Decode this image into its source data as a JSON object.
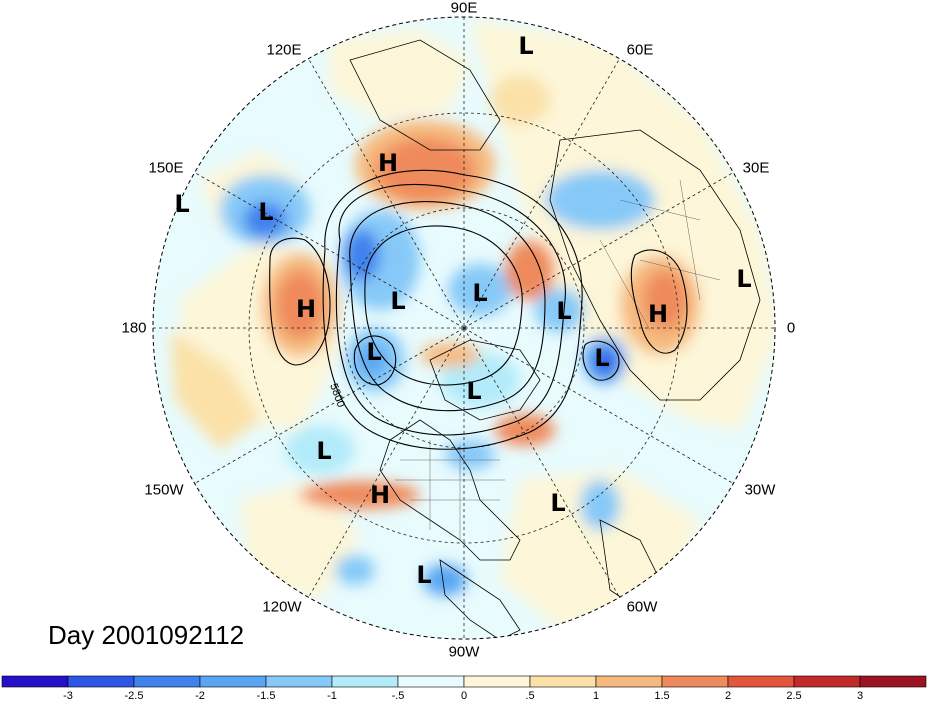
{
  "title": "Day 2001092112",
  "longitude_labels": [
    "90E",
    "60E",
    "30E",
    "0",
    "30W",
    "60W",
    "90W",
    "120W",
    "150W",
    "180",
    "150E",
    "120E"
  ],
  "contour_label": "5800",
  "colorbar": {
    "ticks": [
      "-3",
      "-2.5",
      "-2",
      "-1.5",
      "-1",
      "-.5",
      "0",
      ".5",
      "1",
      "1.5",
      "2",
      "2.5",
      "3"
    ],
    "colors": [
      "#2510c8",
      "#2d56e6",
      "#3f82ee",
      "#5aa6f2",
      "#86c9f8",
      "#b3ebfa",
      "#e8fbfd",
      "#fdf6d8",
      "#fbe1a8",
      "#f6ba7e",
      "#ef8a5c",
      "#e4553e",
      "#c02a28",
      "#9b1221"
    ]
  },
  "systems": [
    {
      "type": "L"
    },
    {
      "type": "H"
    },
    {
      "type": "L"
    },
    {
      "type": "L"
    },
    {
      "type": "H"
    },
    {
      "type": "L"
    },
    {
      "type": "L"
    },
    {
      "type": "L"
    },
    {
      "type": "L"
    },
    {
      "type": "H"
    },
    {
      "type": "L"
    },
    {
      "type": "L"
    },
    {
      "type": "L"
    },
    {
      "type": "H"
    },
    {
      "type": "L"
    },
    {
      "type": "L"
    },
    {
      "type": "L"
    }
  ]
}
